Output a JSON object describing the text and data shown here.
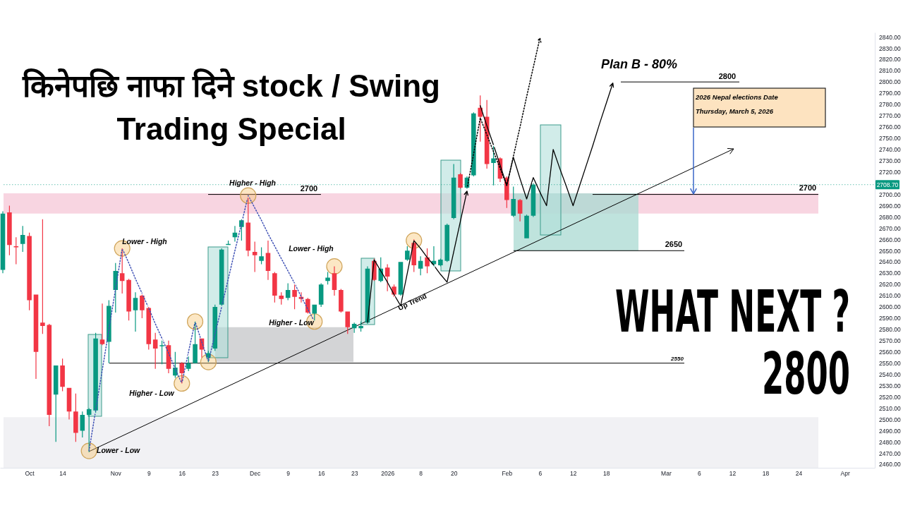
{
  "chart_data": {
    "type": "candlestick",
    "title": "किनेपछि नाफा दिने stock / Swing Trading Special",
    "categories": [
      null,
      null,
      null,
      null,
      "Oct",
      null,
      null,
      null,
      null,
      "14",
      null,
      null,
      null,
      null,
      null,
      null,
      null,
      "Nov",
      null,
      null,
      null,
      null,
      "9",
      null,
      null,
      null,
      null,
      "16",
      null,
      null,
      null,
      null,
      "23",
      null,
      null,
      null,
      null,
      null,
      "Dec",
      null,
      null,
      null,
      null,
      "9",
      null,
      null,
      null,
      null,
      "16",
      null,
      null,
      null,
      null,
      "23",
      null,
      null,
      null,
      null,
      "2026",
      null,
      null,
      null,
      null,
      "8",
      null,
      null,
      null,
      null,
      "20",
      null,
      null,
      null,
      null,
      null,
      null,
      null,
      "Feb",
      null,
      null,
      null,
      null,
      "6",
      null,
      null,
      null,
      null,
      "12",
      null,
      null,
      null,
      null,
      "18",
      null,
      null,
      null,
      null,
      null,
      null,
      null,
      null,
      "Mar",
      null,
      null,
      null,
      null,
      "6",
      null,
      null,
      null,
      null,
      "12",
      null,
      null,
      null,
      null,
      "18",
      null,
      null,
      null,
      null,
      "24",
      null,
      null,
      null,
      null,
      null,
      null,
      "Apr",
      null,
      null,
      null,
      null
    ],
    "ohlc": [
      [
        2633,
        2685,
        2630,
        2683
      ],
      [
        2684,
        2690,
        2646,
        2655
      ],
      [
        2654,
        2662,
        2638,
        2653
      ],
      [
        2656,
        2672,
        2649,
        2664
      ],
      [
        2663,
        2666,
        2597,
        2606
      ],
      [
        2611,
        2611,
        2536,
        2560
      ],
      [
        2586,
        2678,
        2576,
        2583
      ],
      [
        2584,
        2585,
        2494,
        2504
      ],
      [
        2522,
        2548,
        2480,
        2548
      ],
      [
        2548,
        2554,
        2525,
        2529
      ],
      [
        2528,
        2528,
        2500,
        2507
      ],
      [
        2507,
        2523,
        2480,
        2488
      ],
      [
        2490,
        2507,
        2484,
        2504
      ],
      [
        2504,
        2510,
        2471,
        2509
      ],
      [
        2508,
        2577,
        2506,
        2572
      ],
      [
        2571,
        2603,
        2566,
        2567
      ],
      [
        2569,
        2606,
        2550,
        2601
      ],
      [
        2615,
        2639,
        2595,
        2632
      ],
      [
        2630,
        2652,
        2612,
        2623
      ],
      [
        2624,
        2625,
        2588,
        2596
      ],
      [
        2597,
        2613,
        2578,
        2608
      ],
      [
        2610,
        2611,
        2590,
        2597
      ],
      [
        2599,
        2600,
        2562,
        2567
      ],
      [
        2571,
        2577,
        2545,
        2563
      ],
      [
        2565,
        2570,
        2549,
        2566
      ],
      [
        2566,
        2570,
        2541,
        2545
      ],
      [
        2539,
        2560,
        2537,
        2546
      ],
      [
        2550,
        2551,
        2532,
        2541
      ],
      [
        2545,
        2556,
        2543,
        2550
      ],
      [
        2550,
        2587,
        2550,
        2567
      ],
      [
        2572,
        2572,
        2555,
        2562
      ],
      [
        2555,
        2561,
        2551,
        2559
      ],
      [
        2563,
        2602,
        2561,
        2600
      ],
      [
        2602,
        2652,
        2601,
        2651
      ],
      [
        2655,
        2659,
        2655,
        2656
      ],
      [
        2662,
        2672,
        2658,
        2666
      ],
      [
        2671,
        2678,
        2659,
        2677
      ],
      [
        2675,
        2697,
        2645,
        2650
      ],
      [
        2649,
        2658,
        2631,
        2646
      ],
      [
        2641,
        2653,
        2638,
        2645
      ],
      [
        2648,
        2659,
        2624,
        2632
      ],
      [
        2630,
        2631,
        2604,
        2610
      ],
      [
        2610,
        2613,
        2602,
        2607
      ],
      [
        2608,
        2621,
        2606,
        2615
      ],
      [
        2615,
        2620,
        2598,
        2609
      ],
      [
        2609,
        2613,
        2604,
        2607
      ],
      [
        2607,
        2608,
        2594,
        2595
      ],
      [
        2594,
        2602,
        2588,
        2602
      ],
      [
        2602,
        2621,
        2600,
        2620
      ],
      [
        2623,
        2631,
        2620,
        2626
      ],
      [
        2630,
        2636,
        2610,
        2615
      ],
      [
        2615,
        2616,
        2595,
        2596
      ],
      [
        2596,
        2596,
        2576,
        2582
      ],
      [
        2581,
        2586,
        2577,
        2585
      ],
      [
        2581,
        2587,
        2578,
        2583
      ],
      [
        2586,
        2636,
        2585,
        2634
      ],
      [
        2641,
        2643,
        2623,
        2624
      ],
      [
        2623,
        2644,
        2622,
        2634
      ],
      [
        2635,
        2638,
        2614,
        2627
      ],
      [
        2618,
        2620,
        2609,
        2611
      ],
      [
        2611,
        2640,
        2610,
        2640
      ],
      [
        2642,
        2654,
        2641,
        2650
      ],
      [
        2657,
        2660,
        2631,
        2637
      ],
      [
        2634,
        2645,
        2628,
        2641
      ],
      [
        2644,
        2652,
        2630,
        2636
      ],
      [
        2638,
        2654,
        2636,
        2641
      ],
      [
        2637,
        2643,
        2636,
        2642
      ],
      [
        2641,
        2674,
        2640,
        2673
      ],
      [
        2679,
        2727,
        2678,
        2715
      ],
      [
        2718,
        2719,
        2705,
        2706
      ],
      [
        2706,
        2716,
        2705,
        2715
      ],
      [
        2717,
        2773,
        2716,
        2772
      ],
      [
        2777,
        2788,
        2747,
        2769
      ],
      [
        2769,
        2784,
        2723,
        2727
      ],
      [
        2728,
        2743,
        2708,
        2732
      ],
      [
        2732,
        2733,
        2711,
        2714
      ],
      [
        2715,
        2716,
        2688,
        2695
      ],
      [
        2681,
        2707,
        2680,
        2696
      ],
      [
        2695,
        2696,
        2676,
        2683
      ],
      [
        2661,
        2682,
        2661,
        2681
      ],
      [
        2681,
        2710,
        2680,
        2708.7
      ],
      null,
      null,
      null,
      null,
      null,
      null,
      null,
      null,
      null,
      null,
      null,
      null,
      null,
      null,
      null,
      null,
      null,
      null,
      null,
      null,
      null,
      null,
      null,
      null,
      null,
      null,
      null,
      null,
      null,
      null,
      null,
      null,
      null,
      null,
      null,
      null,
      null,
      null,
      null,
      null,
      null,
      null,
      null,
      null,
      null,
      null,
      null,
      null,
      null,
      null,
      null
    ],
    "colors": [
      "#089981",
      "#f23645",
      "#f23645",
      "#089981",
      "#f23645",
      "#f23645",
      "#f23645",
      "#f23645",
      "#089981",
      "#f23645",
      "#f23645",
      "#f23645",
      "#089981",
      "#089981",
      "#089981",
      "#f23645",
      "#089981",
      "#089981",
      "#f23645",
      "#f23645",
      "#089981",
      "#f23645",
      "#f23645",
      "#f23645",
      "#089981",
      "#f23645",
      "#089981",
      "#f23645",
      "#089981",
      "#089981",
      "#f23645",
      "#089981",
      "#089981",
      "#089981",
      "#089981",
      "#089981",
      "#089981",
      "#f23645",
      "#f23645",
      "#089981",
      "#f23645",
      "#f23645",
      "#f23645",
      "#089981",
      "#f23645",
      "#f23645",
      "#f23645",
      "#089981",
      "#089981",
      "#089981",
      "#f23645",
      "#f23645",
      "#f23645",
      "#089981",
      "#089981",
      "#089981",
      "#f23645",
      "#089981",
      "#f23645",
      "#f23645",
      "#089981",
      "#089981",
      "#f23645",
      "#089981",
      "#f23645",
      "#089981",
      "#089981",
      "#089981",
      "#089981",
      "#f23645",
      "#089981",
      "#089981",
      "#f23645",
      "#f23645",
      "#089981",
      "#f23645",
      "#f23645",
      "#089981",
      "#f23645",
      "#089981",
      "#089981",
      null,
      null,
      null,
      null,
      null,
      null,
      null,
      null,
      null,
      null,
      null,
      null,
      null,
      null,
      null,
      null,
      null,
      null,
      null,
      null,
      null,
      null,
      null,
      null,
      null,
      null,
      null,
      null,
      null,
      null,
      null,
      null,
      null,
      null,
      null,
      null,
      null,
      null,
      null,
      null,
      null,
      null,
      null,
      null,
      null,
      null,
      null,
      null,
      null,
      null,
      null
    ],
    "series": [
      {
        "type": "line",
        "color": "#000000",
        "values": [
          null,
          null,
          null,
          null,
          null,
          null,
          null,
          null,
          null,
          null,
          null,
          null,
          null,
          null,
          null,
          null,
          null,
          null,
          null,
          null,
          null,
          null,
          null,
          null,
          null,
          null,
          null,
          null,
          null,
          null,
          null,
          null,
          null,
          null,
          null,
          null,
          null,
          null,
          null,
          null,
          null,
          null,
          null,
          null,
          null,
          null,
          null,
          null,
          null,
          null,
          null,
          null,
          null,
          null,
          null,
          2586,
          2642,
          2632,
          2622,
          2611,
          2601,
          2630,
          2659,
          2652,
          2644,
          2637,
          2629,
          2622,
          2649,
          2676,
          2703,
          null,
          null,
          null,
          null,
          null,
          null,
          null,
          null,
          null,
          null,
          null,
          null,
          null,
          null,
          null,
          null,
          null,
          null,
          null,
          null,
          null,
          null,
          null,
          null,
          null,
          null,
          null,
          null,
          null,
          null,
          null,
          null,
          null,
          null,
          null,
          null,
          null,
          null,
          null,
          null,
          null,
          null,
          null,
          null,
          null,
          null,
          null,
          null,
          null,
          null,
          null,
          null,
          null,
          null,
          null,
          null,
          null,
          null,
          null,
          null,
          null
        ]
      },
      {
        "type": "line",
        "color": "#000000",
        "values": [
          null,
          null,
          null,
          null,
          null,
          null,
          null,
          null,
          null,
          null,
          null,
          null,
          null,
          null,
          null,
          null,
          null,
          null,
          null,
          null,
          null,
          null,
          null,
          null,
          null,
          null,
          null,
          null,
          null,
          null,
          null,
          null,
          null,
          null,
          null,
          null,
          null,
          null,
          null,
          null,
          null,
          null,
          null,
          null,
          null,
          null,
          null,
          null,
          null,
          null,
          null,
          null,
          null,
          null,
          null,
          null,
          null,
          null,
          null,
          null,
          null,
          null,
          null,
          null,
          null,
          null,
          null,
          null,
          null,
          null,
          null,
          null,
          2779,
          2761,
          2744,
          2726,
          2708,
          2733,
          2714,
          2696,
          2715,
          2702,
          2690,
          2740,
          2723,
          2707,
          2690,
          2708,
          2726,
          2744,
          2763,
          2781,
          2799,
          null,
          null,
          null,
          null,
          null,
          null,
          null,
          null,
          null,
          null,
          null,
          null,
          null,
          null,
          null,
          null,
          null,
          null,
          null,
          null,
          null,
          null,
          null,
          null,
          null,
          null,
          null,
          null,
          null,
          null,
          null,
          null,
          null,
          null,
          null,
          null,
          null,
          null,
          null
        ]
      },
      {
        "type": "line",
        "color": "#000000",
        "line_style": "dotted",
        "values": [
          null,
          null,
          null,
          null,
          null,
          null,
          null,
          null,
          null,
          null,
          null,
          null,
          null,
          null,
          null,
          null,
          null,
          null,
          null,
          null,
          null,
          null,
          null,
          null,
          null,
          null,
          null,
          null,
          null,
          null,
          null,
          null,
          null,
          null,
          null,
          null,
          null,
          null,
          null,
          null,
          null,
          null,
          null,
          null,
          null,
          null,
          null,
          null,
          null,
          null,
          null,
          null,
          null,
          null,
          null,
          null,
          null,
          null,
          null,
          null,
          null,
          null,
          null,
          null,
          null,
          null,
          null,
          null,
          null,
          null,
          2705,
          2736,
          2768,
          2753,
          2738,
          2723,
          2708,
          2734,
          2760,
          2787,
          2813,
          2839,
          null,
          null,
          null,
          null,
          null,
          null,
          null,
          null,
          null,
          null,
          null,
          null,
          null,
          null,
          null,
          null,
          null,
          null,
          null,
          null,
          null,
          null,
          null,
          null,
          null,
          null,
          null,
          null,
          null,
          null,
          null,
          null,
          null,
          null,
          null,
          null,
          null,
          null,
          null,
          null,
          null,
          null,
          null,
          null,
          null,
          null,
          null,
          null,
          null,
          null
        ]
      },
      {
        "type": "line",
        "color": "#3f51b5",
        "line_style": "dotted",
        "values": [
          null,
          null,
          null,
          null,
          null,
          null,
          null,
          null,
          null,
          null,
          null,
          null,
          null,
          2472,
          2508,
          2544,
          2580,
          2616,
          2652,
          2639,
          2625,
          2612,
          2599,
          2585,
          2572,
          2559,
          2545,
          2532,
          2560,
          2587,
          2569,
          2551,
          2576,
          2600,
          2625,
          2650,
          2674,
          2699,
          2688,
          2677,
          2665,
          2654,
          2643,
          2632,
          2621,
          2609,
          2598,
          2587,
          null,
          null,
          null,
          null,
          null,
          null,
          null,
          null,
          null,
          null,
          null,
          null,
          null,
          null,
          null,
          null,
          null,
          null,
          null,
          null,
          null,
          null,
          null,
          null,
          null,
          null,
          null,
          null,
          null,
          null,
          null,
          null,
          null,
          null,
          null,
          null,
          null,
          null,
          null,
          null,
          null,
          null,
          null,
          null,
          null,
          null,
          null,
          null,
          null,
          null,
          null,
          null,
          null,
          null,
          null,
          null,
          null,
          null,
          null,
          null,
          null,
          null,
          null,
          null,
          null,
          null,
          null,
          null,
          null,
          null,
          null,
          null,
          null,
          null,
          null,
          null,
          null,
          null,
          null,
          null,
          null,
          null,
          null,
          null
        ]
      },
      {
        "type": "scatter",
        "color": "#f7c46c",
        "marker": "circle",
        "values": [
          null,
          null,
          null,
          null,
          null,
          null,
          null,
          null,
          null,
          null,
          null,
          null,
          null,
          2472,
          null,
          null,
          null,
          null,
          2652,
          null,
          null,
          null,
          null,
          null,
          null,
          null,
          null,
          2532,
          null,
          2587,
          null,
          2551,
          null,
          null,
          null,
          null,
          null,
          2699,
          null,
          null,
          null,
          null,
          null,
          null,
          null,
          null,
          null,
          2587,
          null,
          null,
          2636,
          null,
          null,
          null,
          null,
          null,
          null,
          null,
          null,
          null,
          null,
          null,
          2659,
          null,
          null,
          null,
          null,
          null,
          null,
          null,
          null,
          null,
          null,
          null,
          null,
          null,
          null,
          null,
          null,
          null,
          null,
          null,
          null,
          null,
          null,
          null,
          null,
          null,
          null,
          null,
          null,
          null,
          null,
          null,
          null,
          null,
          null,
          null,
          null,
          null,
          null,
          null,
          null,
          null,
          null,
          null,
          null,
          null,
          null,
          null,
          null,
          null,
          null,
          null,
          null,
          null,
          null,
          null,
          null,
          null,
          null,
          null,
          null,
          null,
          null,
          null,
          null,
          null,
          null,
          null,
          null,
          null
        ]
      }
    ],
    "ylim": [
      2457,
      2844
    ],
    "yticks": [
      {
        "value": 2460,
        "label": "2460.00"
      },
      {
        "value": 2470,
        "label": "2470.00"
      },
      {
        "value": 2480,
        "label": "2480.00"
      },
      {
        "value": 2490,
        "label": "2490.00"
      },
      {
        "value": 2500,
        "label": "2500.00"
      },
      {
        "value": 2510,
        "label": "2510.00"
      },
      {
        "value": 2520,
        "label": "2520.00"
      },
      {
        "value": 2530,
        "label": "2530.00"
      },
      {
        "value": 2540,
        "label": "2540.00"
      },
      {
        "value": 2550,
        "label": "2550.00"
      },
      {
        "value": 2560,
        "label": "2560.00"
      },
      {
        "value": 2570,
        "label": "2570.00"
      },
      {
        "value": 2580,
        "label": "2580.00"
      },
      {
        "value": 2590,
        "label": "2590.00"
      },
      {
        "value": 2600,
        "label": "2600.00"
      },
      {
        "value": 2610,
        "label": "2610.00"
      },
      {
        "value": 2620,
        "label": "2620.00"
      },
      {
        "value": 2630,
        "label": "2630.00"
      },
      {
        "value": 2640,
        "label": "2640.00"
      },
      {
        "value": 2650,
        "label": "2650.00"
      },
      {
        "value": 2660,
        "label": "2660.00"
      },
      {
        "value": 2670,
        "label": "2670.00"
      },
      {
        "value": 2680,
        "label": "2680.00"
      },
      {
        "value": 2690,
        "label": "2690.00"
      },
      {
        "value": 2700,
        "label": "2700.00"
      },
      {
        "value": 2720,
        "label": "2720.00"
      },
      {
        "value": 2730,
        "label": "2730.00"
      },
      {
        "value": 2740,
        "label": "2740.00"
      },
      {
        "value": 2750,
        "label": "2750.00"
      },
      {
        "value": 2760,
        "label": "2760.00"
      },
      {
        "value": 2770,
        "label": "2770.00"
      },
      {
        "value": 2780,
        "label": "2780.00"
      },
      {
        "value": 2790,
        "label": "2790.00"
      },
      {
        "value": 2800,
        "label": "2800.00"
      },
      {
        "value": 2810,
        "label": "2810.00"
      },
      {
        "value": 2820,
        "label": "2820.00"
      },
      {
        "value": 2830,
        "label": "2830.00"
      },
      {
        "value": 2840,
        "label": "2840.00"
      }
    ],
    "ref_lines": [
      {
        "axis": "y",
        "value": 2708.7,
        "label": "2708.70",
        "color": "#089981",
        "line_style": "dotted"
      },
      {
        "axis": "y",
        "value": 2700,
        "label": "2700",
        "color": "#000000"
      },
      {
        "axis": "y",
        "value": 2650,
        "label": "2650",
        "color": "#000000"
      },
      {
        "axis": "y",
        "value": 2550,
        "label": "2550",
        "color": "#000000"
      },
      {
        "axis": "y",
        "value": 2800,
        "label": "2800",
        "color": "#000000"
      }
    ],
    "bands": [
      {
        "axis": "y",
        "from": 2683,
        "to": 2701,
        "color": "#f8d3df"
      },
      {
        "axis": "y",
        "from": 2457,
        "to": 2502,
        "color": "#f0f0f3"
      },
      {
        "axis": "y",
        "from": 2551,
        "to": 2582,
        "color": "#d1d2d4"
      },
      {
        "axis": "y",
        "from": 2650,
        "to": 2701,
        "color": "#a9d9d1"
      }
    ],
    "annotations": [
      "Lower - High",
      "Higher - High",
      "Lower - High",
      "Higher - Low",
      "Higher - Low",
      "Lower - Low",
      "Up Trend",
      "Plan B - 80%",
      "2026 Nepal elections Date",
      "Thursday, March 5, 2026",
      "WHAT NEXT ?",
      "2800"
    ]
  }
}
